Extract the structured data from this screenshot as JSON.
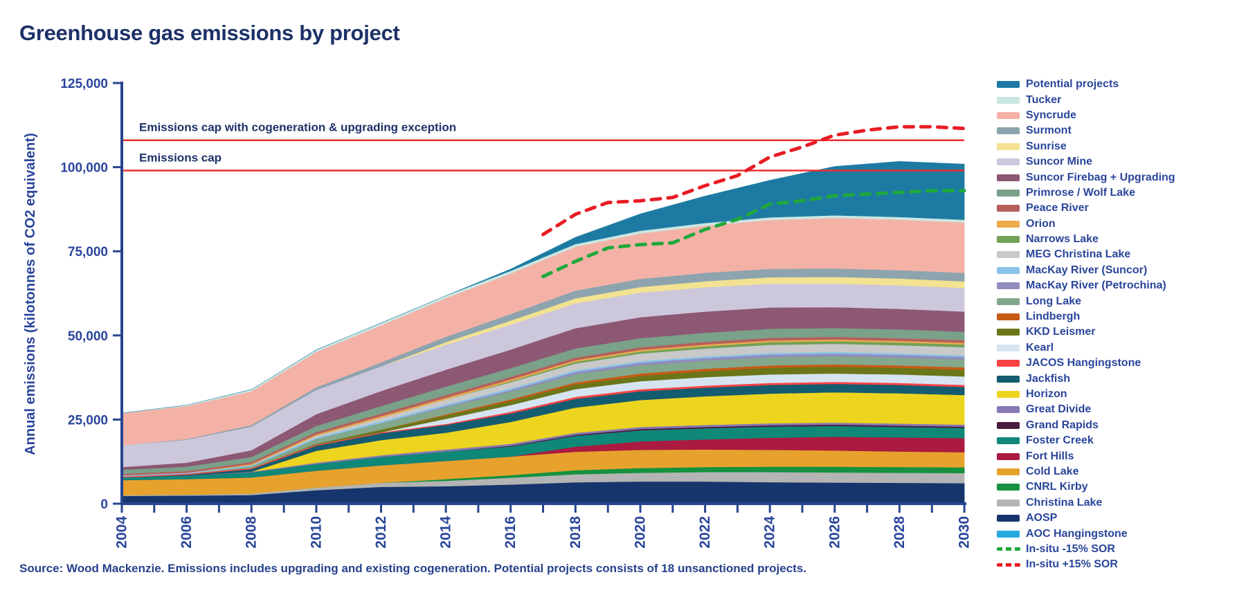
{
  "page": {
    "title": "Greenhouse gas emissions by project",
    "source": "Source: Wood Mackenzie. Emissions includes upgrading and existing cogeneration. Potential projects consists of 18 unsanctioned projects."
  },
  "colors": {
    "title_text": "#1d3168",
    "axis_text": "#2a459b",
    "axis_line": "#27448f",
    "cap_line": "#ee2e2c",
    "background": "#ffffff"
  },
  "y_axis": {
    "label": "Annual emissions (kilotonnes of CO2 equivalent)",
    "ticks": [
      {
        "value": 0,
        "label": "0"
      },
      {
        "value": 25000,
        "label": "25,000"
      },
      {
        "value": 50000,
        "label": "50,000"
      },
      {
        "value": 75000,
        "label": "75,000"
      },
      {
        "value": 100000,
        "label": "100,000"
      },
      {
        "value": 125000,
        "label": "125,000"
      }
    ]
  },
  "x_axis": {
    "labels": [
      "2004",
      "2006",
      "2008",
      "2010",
      "2012",
      "2014",
      "2016",
      "2018",
      "2020",
      "2022",
      "2024",
      "2026",
      "2028",
      "2030"
    ],
    "minor_tick_every_years": 1
  },
  "legend": [
    {
      "label": "Potential projects",
      "color": "#1d7ba3",
      "style": "solid"
    },
    {
      "label": "Tucker",
      "color": "#cbe6e2",
      "style": "solid"
    },
    {
      "label": "Syncrude",
      "color": "#f4b2a7",
      "style": "solid"
    },
    {
      "label": "Surmont",
      "color": "#8da4af",
      "style": "solid"
    },
    {
      "label": "Sunrise",
      "color": "#f2e291",
      "style": "solid"
    },
    {
      "label": "Suncor Mine",
      "color": "#cdc7dc",
      "style": "solid"
    },
    {
      "label": "Suncor Firebag + Upgrading",
      "color": "#8c5873",
      "style": "solid"
    },
    {
      "label": "Primrose / Wolf Lake",
      "color": "#7aa189",
      "style": "solid"
    },
    {
      "label": "Peace River",
      "color": "#b4615d",
      "style": "solid"
    },
    {
      "label": "Orion",
      "color": "#ecab4c",
      "style": "solid"
    },
    {
      "label": "Narrows Lake",
      "color": "#72a157",
      "style": "solid"
    },
    {
      "label": "MEG Christina Lake",
      "color": "#c9c9c9",
      "style": "solid"
    },
    {
      "label": "MacKay River (Suncor)",
      "color": "#8ac3e8",
      "style": "solid"
    },
    {
      "label": "MacKay River (Petrochina)",
      "color": "#908dbd",
      "style": "solid"
    },
    {
      "label": "Long Lake",
      "color": "#83a88b",
      "style": "solid"
    },
    {
      "label": "Lindbergh",
      "color": "#c85a16",
      "style": "solid"
    },
    {
      "label": "KKD Leismer",
      "color": "#6b7619",
      "style": "solid"
    },
    {
      "label": "Kearl",
      "color": "#d6e4f2",
      "style": "solid"
    },
    {
      "label": "JACOS Hangingstone",
      "color": "#fa4345",
      "style": "solid"
    },
    {
      "label": "Jackfish",
      "color": "#145c70",
      "style": "solid"
    },
    {
      "label": "Horizon",
      "color": "#edd41f",
      "style": "solid"
    },
    {
      "label": "Great Divide",
      "color": "#8679b3",
      "style": "solid"
    },
    {
      "label": "Grand Rapids",
      "color": "#4c1b40",
      "style": "solid"
    },
    {
      "label": "Foster Creek",
      "color": "#0f8878",
      "style": "solid"
    },
    {
      "label": "Fort Hills",
      "color": "#ab1a40",
      "style": "solid"
    },
    {
      "label": "Cold Lake",
      "color": "#e7a22e",
      "style": "solid"
    },
    {
      "label": "CNRL Kirby",
      "color": "#15913f",
      "style": "solid"
    },
    {
      "label": "Christina Lake",
      "color": "#b4b4b4",
      "style": "solid"
    },
    {
      "label": "AOSP",
      "color": "#16356c",
      "style": "solid"
    },
    {
      "label": "AOC Hangingstone",
      "color": "#29a9e1",
      "style": "solid"
    },
    {
      "label": "In-situ -15% SOR",
      "color": "#1fa83c",
      "style": "dashed"
    },
    {
      "label": "In-situ +15% SOR",
      "color": "#e81c24",
      "style": "dashed"
    }
  ],
  "chart_data": {
    "type": "area",
    "stacked": true,
    "title": "Greenhouse gas emissions by project",
    "xlabel": "",
    "ylabel": "Annual emissions (kilotonnes of CO2 equivalent)",
    "unit": "kilotonnes CO2 equivalent per year",
    "ylim": [
      0,
      125000
    ],
    "xlim": [
      2004,
      2030
    ],
    "grid": false,
    "legend_position": "right",
    "years": [
      2004,
      2006,
      2008,
      2010,
      2012,
      2014,
      2016,
      2018,
      2020,
      2022,
      2024,
      2026,
      2028,
      2030
    ],
    "series": [
      {
        "name": "AOC Hangingstone",
        "color": "#29a9e1",
        "values": [
          0,
          0,
          0,
          0,
          0,
          0,
          200,
          350,
          400,
          400,
          400,
          400,
          400,
          400
        ]
      },
      {
        "name": "AOSP",
        "color": "#16356c",
        "values": [
          2300,
          2400,
          2600,
          4000,
          5000,
          5200,
          5500,
          6000,
          6200,
          6200,
          6000,
          5900,
          5800,
          5700
        ]
      },
      {
        "name": "Christina Lake",
        "color": "#b4b4b4",
        "values": [
          200,
          300,
          400,
          800,
          1200,
          1600,
          2000,
          2400,
          2600,
          2800,
          3000,
          3000,
          3000,
          3000
        ]
      },
      {
        "name": "CNRL Kirby",
        "color": "#15913f",
        "values": [
          0,
          0,
          0,
          0,
          0,
          500,
          800,
          1200,
          1400,
          1500,
          1600,
          1700,
          1700,
          1700
        ]
      },
      {
        "name": "Cold Lake",
        "color": "#e7a22e",
        "values": [
          4500,
          4600,
          4800,
          5000,
          5200,
          5400,
          5500,
          5500,
          5400,
          5200,
          5000,
          4800,
          4600,
          4500
        ]
      },
      {
        "name": "Fort Hills",
        "color": "#ab1a40",
        "values": [
          0,
          0,
          0,
          0,
          0,
          0,
          0,
          1500,
          2500,
          3000,
          3600,
          4100,
          4200,
          4200
        ]
      },
      {
        "name": "Foster Creek",
        "color": "#0f8878",
        "values": [
          800,
          1000,
          1500,
          2000,
          2500,
          2800,
          3000,
          3200,
          3300,
          3300,
          3300,
          3200,
          3100,
          3000
        ]
      },
      {
        "name": "Grand Rapids",
        "color": "#4c1b40",
        "values": [
          0,
          0,
          0,
          0,
          0,
          0,
          200,
          300,
          400,
          400,
          400,
          400,
          400,
          400
        ]
      },
      {
        "name": "Great Divide",
        "color": "#8679b3",
        "values": [
          0,
          0,
          200,
          400,
          500,
          600,
          600,
          600,
          600,
          600,
          600,
          600,
          600,
          600
        ]
      },
      {
        "name": "Horizon",
        "color": "#edd41f",
        "values": [
          0,
          0,
          0,
          3500,
          4500,
          5000,
          6500,
          7500,
          8000,
          8500,
          8800,
          9000,
          9000,
          8800
        ]
      },
      {
        "name": "Jackfish",
        "color": "#145c70",
        "values": [
          0,
          300,
          800,
          1500,
          2000,
          2300,
          2500,
          2600,
          2600,
          2600,
          2600,
          2500,
          2500,
          2400
        ]
      },
      {
        "name": "JACOS Hangingstone",
        "color": "#fa4345",
        "values": [
          300,
          300,
          300,
          300,
          300,
          300,
          500,
          600,
          600,
          600,
          600,
          600,
          600,
          600
        ]
      },
      {
        "name": "Kearl",
        "color": "#d6e4f2",
        "values": [
          0,
          0,
          0,
          0,
          0,
          1500,
          2000,
          2300,
          2400,
          2500,
          2500,
          2500,
          2500,
          2500
        ]
      },
      {
        "name": "KKD Leismer",
        "color": "#6b7619",
        "values": [
          0,
          0,
          0,
          300,
          800,
          1000,
          1200,
          1400,
          1600,
          1800,
          2000,
          2000,
          2000,
          2000
        ]
      },
      {
        "name": "Lindbergh",
        "color": "#c85a16",
        "values": [
          0,
          0,
          0,
          0,
          0,
          300,
          500,
          600,
          700,
          700,
          700,
          700,
          700,
          700
        ]
      },
      {
        "name": "Long Lake",
        "color": "#83a88b",
        "values": [
          0,
          0,
          500,
          1500,
          2000,
          2200,
          2300,
          2400,
          2400,
          2400,
          2400,
          2400,
          2300,
          2300
        ]
      },
      {
        "name": "MacKay River (Petrochina)",
        "color": "#908dbd",
        "values": [
          0,
          0,
          0,
          0,
          0,
          300,
          500,
          700,
          800,
          800,
          800,
          800,
          800,
          800
        ]
      },
      {
        "name": "MacKay River (Suncor)",
        "color": "#8ac3e8",
        "values": [
          300,
          300,
          400,
          400,
          500,
          500,
          500,
          500,
          500,
          500,
          500,
          500,
          500,
          500
        ]
      },
      {
        "name": "MEG Christina Lake",
        "color": "#c9c9c9",
        "values": [
          0,
          0,
          0,
          500,
          1000,
          1500,
          1800,
          2000,
          2200,
          2300,
          2400,
          2400,
          2400,
          2400
        ]
      },
      {
        "name": "Narrows Lake",
        "color": "#72a157",
        "values": [
          0,
          0,
          0,
          0,
          0,
          0,
          300,
          500,
          600,
          700,
          800,
          800,
          800,
          800
        ]
      },
      {
        "name": "Orion",
        "color": "#ecab4c",
        "values": [
          0,
          0,
          300,
          400,
          500,
          500,
          500,
          500,
          500,
          500,
          500,
          500,
          500,
          500
        ]
      },
      {
        "name": "Peace River",
        "color": "#b4615d",
        "values": [
          500,
          500,
          600,
          700,
          800,
          800,
          800,
          800,
          800,
          800,
          800,
          800,
          800,
          800
        ]
      },
      {
        "name": "Primrose / Wolf Lake",
        "color": "#7aa189",
        "values": [
          1200,
          1300,
          1500,
          1800,
          2200,
          2500,
          2600,
          2700,
          2700,
          2700,
          2700,
          2600,
          2600,
          2500
        ]
      },
      {
        "name": "Suncor Firebag + Upgrading",
        "color": "#8c5873",
        "values": [
          800,
          1200,
          2000,
          3500,
          4500,
          5000,
          5500,
          6000,
          6200,
          6300,
          6300,
          6200,
          6100,
          6000
        ]
      },
      {
        "name": "Suncor Mine",
        "color": "#cdc7dc",
        "values": [
          6500,
          6800,
          7000,
          7200,
          7300,
          7400,
          7400,
          7400,
          7300,
          7200,
          7100,
          7000,
          7000,
          7000
        ]
      },
      {
        "name": "Sunrise",
        "color": "#f2e291",
        "values": [
          0,
          0,
          0,
          0,
          0,
          800,
          1200,
          1500,
          1700,
          1800,
          1900,
          2000,
          2000,
          2000
        ]
      },
      {
        "name": "Surmont",
        "color": "#8da4af",
        "values": [
          0,
          200,
          500,
          800,
          1200,
          1600,
          2000,
          2300,
          2400,
          2500,
          2500,
          2500,
          2500,
          2500
        ]
      },
      {
        "name": "Syncrude",
        "color": "#f4b2a7",
        "values": [
          9500,
          9800,
          10000,
          10500,
          11000,
          11500,
          12000,
          13000,
          13500,
          14000,
          14500,
          15000,
          15000,
          15000
        ]
      },
      {
        "name": "Tucker",
        "color": "#cbe6e2",
        "values": [
          0,
          300,
          500,
          600,
          700,
          700,
          800,
          800,
          800,
          800,
          800,
          800,
          800,
          800
        ]
      },
      {
        "name": "Potential projects",
        "color": "#1d7ba3",
        "values": [
          0,
          0,
          0,
          0,
          0,
          0,
          500,
          2000,
          5000,
          8000,
          11000,
          14500,
          16500,
          16500
        ]
      }
    ],
    "lines": [
      {
        "name": "In-situ -15% SOR",
        "color": "#1fa83c",
        "dashed": true,
        "x": [
          2017,
          2018,
          2019,
          2020,
          2021,
          2022,
          2023,
          2024,
          2025,
          2026,
          2027,
          2028,
          2029,
          2030
        ],
        "values": [
          67500,
          72000,
          76000,
          77000,
          77500,
          81500,
          84500,
          89000,
          90000,
          91500,
          92000,
          92500,
          93000,
          93000
        ]
      },
      {
        "name": "In-situ +15% SOR",
        "color": "#e81c24",
        "dashed": true,
        "x": [
          2017,
          2018,
          2019,
          2020,
          2021,
          2022,
          2023,
          2024,
          2025,
          2026,
          2027,
          2028,
          2029,
          2030
        ],
        "values": [
          80000,
          86000,
          89500,
          90000,
          91000,
          94500,
          97500,
          103000,
          106000,
          109500,
          111000,
          112000,
          112000,
          111500
        ]
      }
    ],
    "cap_lines": [
      {
        "label": "Emissions cap with cogeneration & upgrading exception",
        "value": 108000
      },
      {
        "label": "Emissions cap",
        "value": 99000
      }
    ]
  }
}
